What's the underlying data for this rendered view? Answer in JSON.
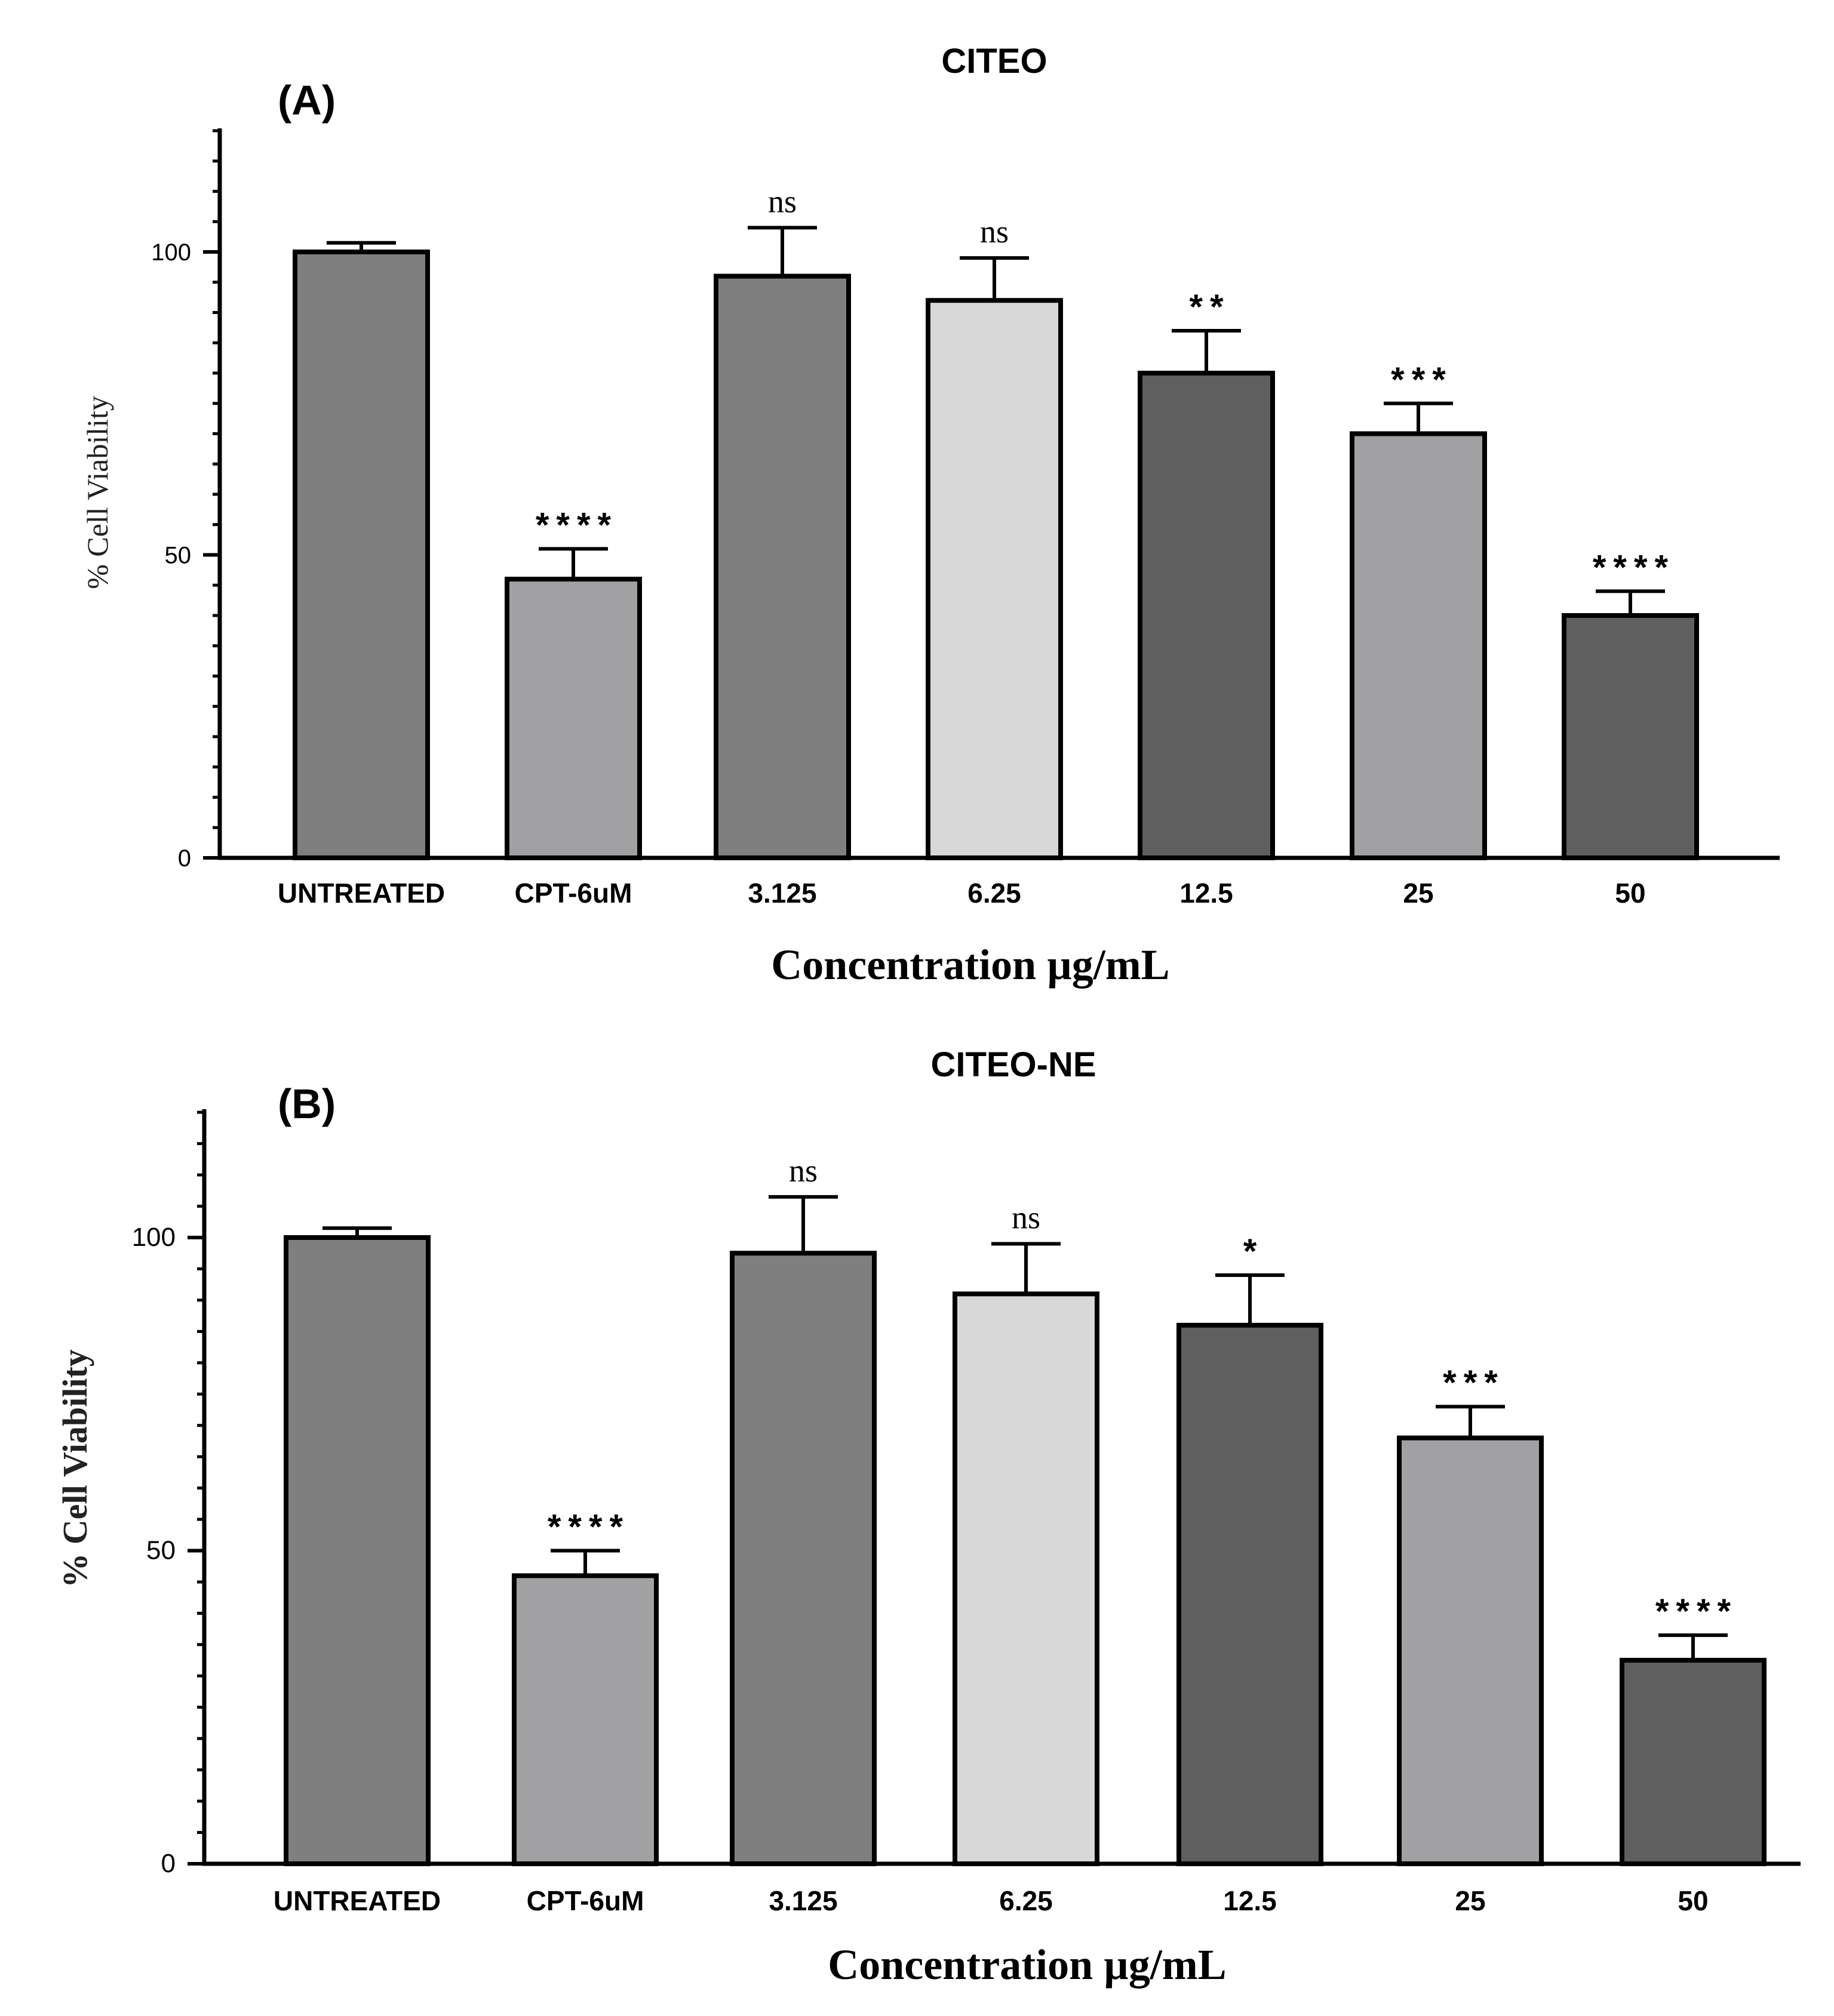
{
  "chart_data": [
    {
      "type": "bar",
      "panel_label": "(A)",
      "title": "CITEO",
      "xlabel": "Concentration µg/mL",
      "ylabel": "% Cell Viability",
      "ylim": [
        0,
        120
      ],
      "yticks": [
        0,
        50,
        100
      ],
      "categories": [
        "UNTREATED",
        "CPT-6uM",
        "3.125",
        "6.25",
        "12.5",
        "25",
        "50"
      ],
      "values": [
        100,
        46,
        96,
        92,
        80,
        70,
        40
      ],
      "errors": [
        1.5,
        5,
        8,
        7,
        7,
        5,
        4
      ],
      "significance": [
        "",
        "****",
        "ns",
        "ns",
        "**",
        "***",
        "****"
      ],
      "colors": [
        "#7f7f7f",
        "#a1a1a3",
        "#7f7f7f",
        "#d8d8d8",
        "#5f5f5f",
        "#a1a1a3",
        "#5f5f5f"
      ]
    },
    {
      "type": "bar",
      "panel_label": "(B)",
      "title": "CITEO-NE",
      "xlabel": "Concentration µg/mL",
      "ylabel": "% Cell Viability",
      "ylim": [
        0,
        120
      ],
      "yticks": [
        0,
        50,
        100
      ],
      "categories": [
        "UNTREATED",
        "CPT-6uM",
        "3.125",
        "6.25",
        "12.5",
        "25",
        "50"
      ],
      "values": [
        100,
        46,
        97.5,
        91,
        86,
        68,
        32.5
      ],
      "errors": [
        1.5,
        4,
        9,
        8,
        8,
        5,
        4
      ],
      "significance": [
        "",
        "****",
        "ns",
        "ns",
        "*",
        "***",
        "****"
      ],
      "colors": [
        "#7f7f7f",
        "#a1a1a3",
        "#7f7f7f",
        "#d8d8d8",
        "#5f5f5f",
        "#a1a1a3",
        "#5f5f5f"
      ]
    }
  ]
}
